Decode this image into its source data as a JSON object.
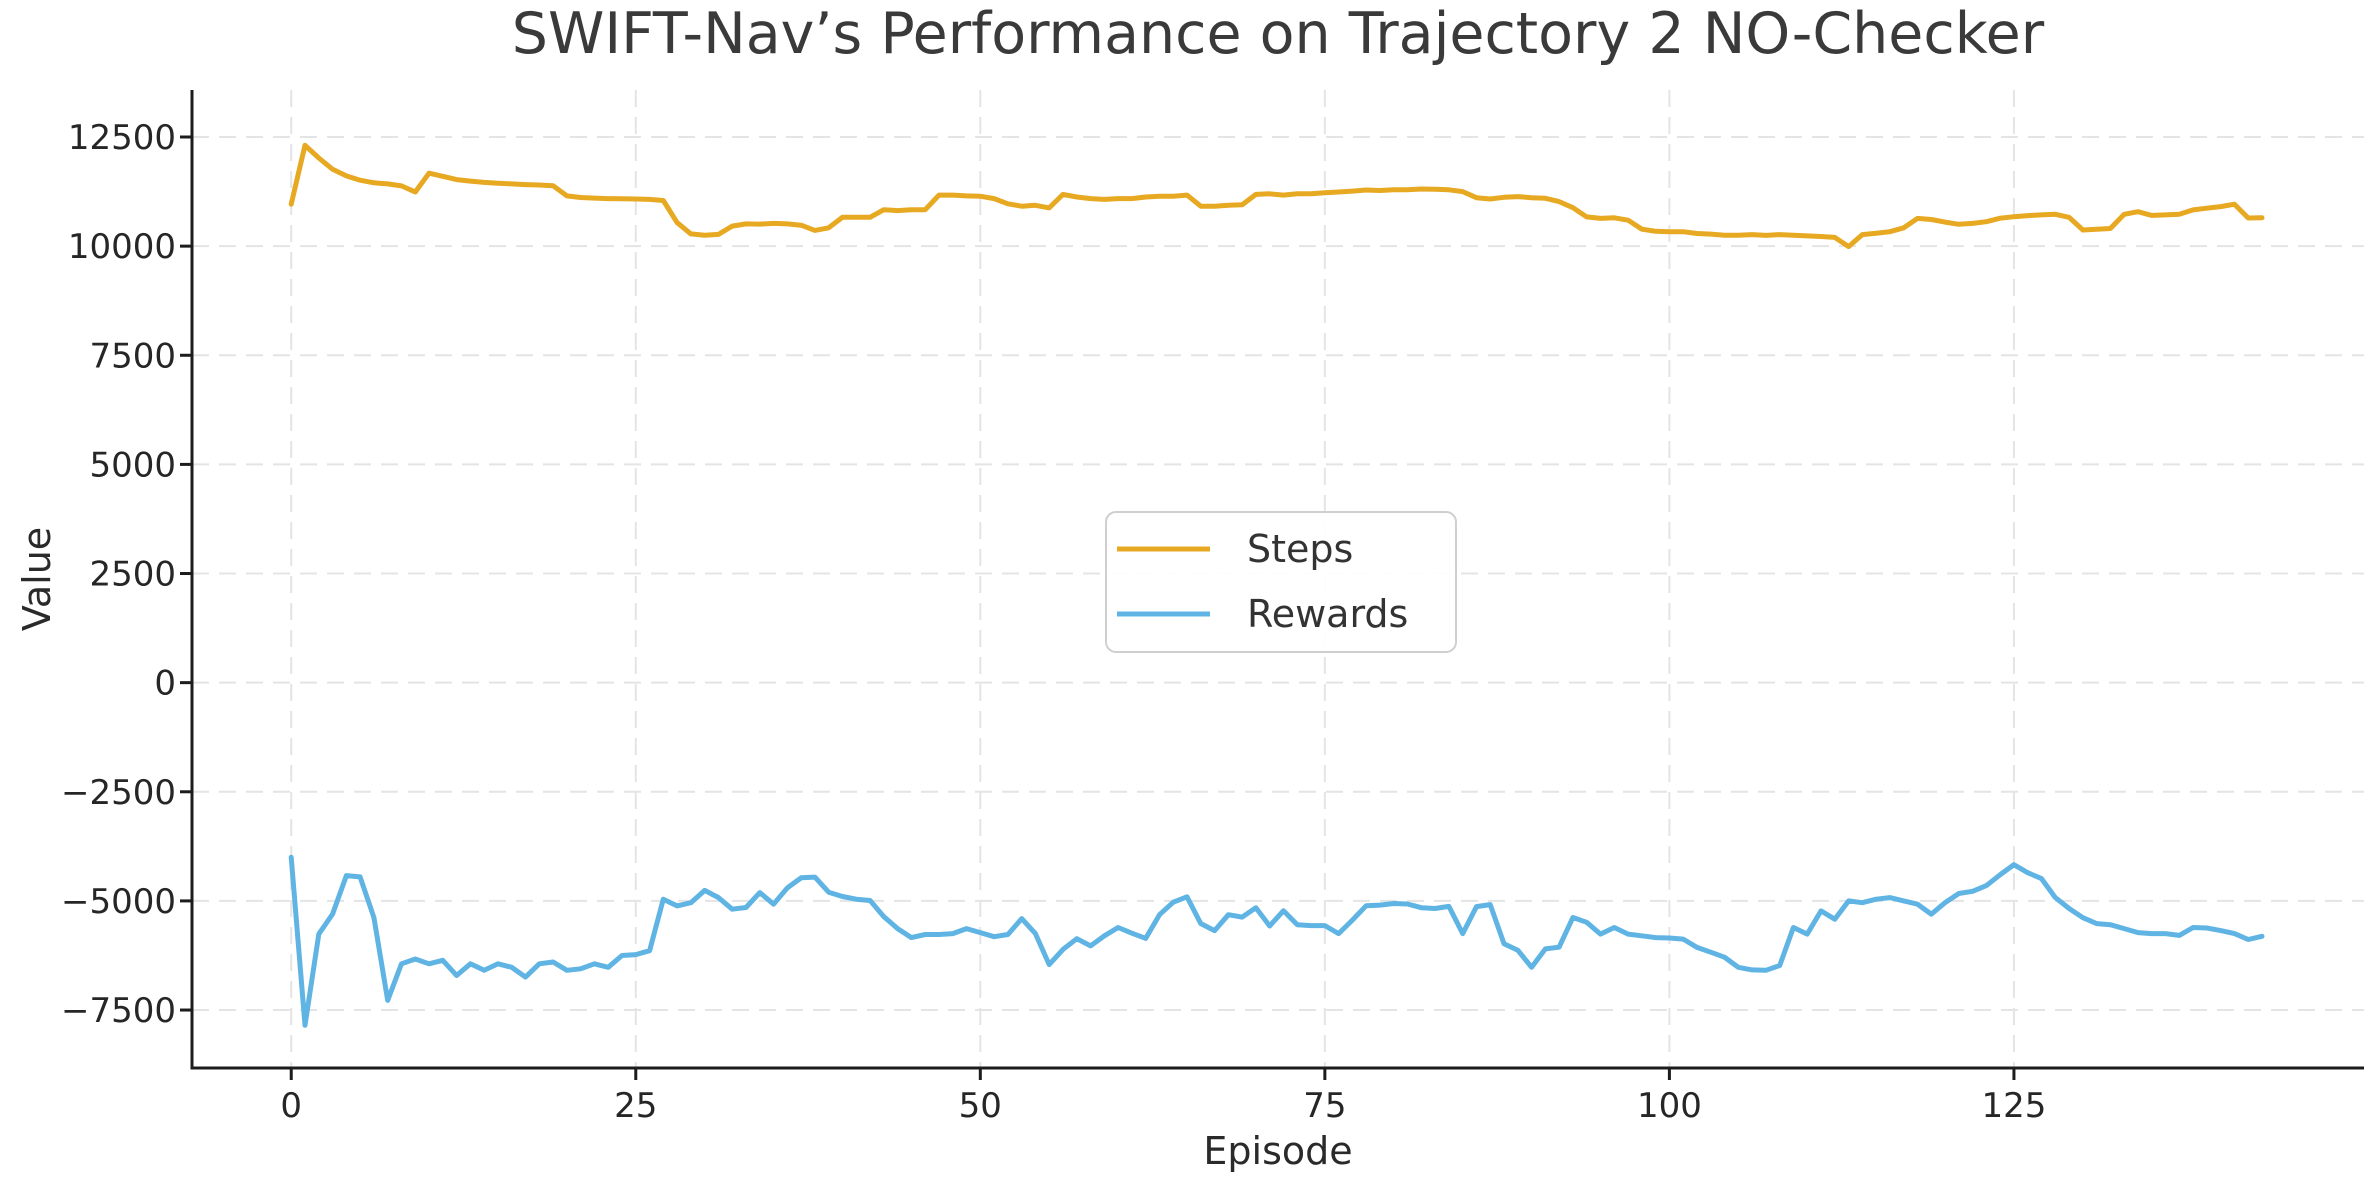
{
  "title": "SWIFT-Nav’s Performance on Trajectory 2 NO-Checker",
  "colors": {
    "steps": "#E7A822",
    "rewards": "#5FB4E4",
    "grid": "#E4E4E4",
    "spine": "#1C1C1C",
    "background": "#FFFFFF"
  },
  "legend": {
    "position": "center",
    "items": [
      {
        "label": "Steps"
      },
      {
        "label": "Rewards"
      }
    ]
  },
  "chart_data": {
    "type": "line",
    "title": "SWIFT-Nav’s Performance on Trajectory 2 NO-Checker",
    "xlabel": "Episode",
    "ylabel": "Value",
    "x_ticks": [
      0,
      25,
      50,
      75,
      100,
      125
    ],
    "y_ticks": [
      12500,
      10000,
      7500,
      5000,
      2500,
      0,
      -2500,
      -5000,
      -7500
    ],
    "xlim": [
      -7.2,
      150.4
    ],
    "ylim": [
      -8828,
      13577
    ],
    "grid": "dashed",
    "legend_position": "center",
    "x": {
      "start": 0,
      "step": 1,
      "count": 144
    },
    "series": [
      {
        "name": "Steps",
        "color": "#E7A822",
        "values": [
          10960,
          12310,
          12020,
          11760,
          11610,
          11510,
          11450,
          11425,
          11380,
          11240,
          11670,
          11600,
          11525,
          11490,
          11460,
          11440,
          11425,
          11410,
          11400,
          11385,
          11150,
          11115,
          11100,
          11090,
          11085,
          11080,
          11070,
          11045,
          10540,
          10280,
          10250,
          10270,
          10460,
          10510,
          10505,
          10520,
          10510,
          10480,
          10360,
          10420,
          10660,
          10660,
          10660,
          10835,
          10815,
          10835,
          10835,
          11170,
          11170,
          11150,
          11145,
          11090,
          10970,
          10915,
          10935,
          10875,
          11185,
          11125,
          11090,
          11070,
          11090,
          11090,
          11125,
          11145,
          11145,
          11170,
          10915,
          10915,
          10935,
          10950,
          11185,
          11200,
          11170,
          11200,
          11200,
          11225,
          11240,
          11260,
          11285,
          11275,
          11290,
          11290,
          11310,
          11305,
          11290,
          11250,
          11110,
          11080,
          11120,
          11135,
          11110,
          11095,
          11020,
          10880,
          10670,
          10635,
          10650,
          10595,
          10390,
          10340,
          10330,
          10330,
          10290,
          10275,
          10250,
          10250,
          10265,
          10245,
          10265,
          10250,
          10235,
          10220,
          10200,
          9990,
          10265,
          10295,
          10330,
          10420,
          10635,
          10610,
          10550,
          10500,
          10520,
          10560,
          10640,
          10675,
          10700,
          10715,
          10730,
          10660,
          10370,
          10385,
          10405,
          10730,
          10790,
          10705,
          10715,
          10730,
          10830,
          10870,
          10905,
          10960,
          10645,
          10650
        ]
      },
      {
        "name": "Rewards",
        "color": "#5FB4E4",
        "values": [
          -4000,
          -7850,
          -5760,
          -5300,
          -4420,
          -4450,
          -5380,
          -7280,
          -6440,
          -6330,
          -6440,
          -6360,
          -6710,
          -6440,
          -6590,
          -6440,
          -6520,
          -6745,
          -6440,
          -6400,
          -6590,
          -6555,
          -6440,
          -6520,
          -6250,
          -6230,
          -6140,
          -4960,
          -5115,
          -5040,
          -4760,
          -4925,
          -5190,
          -5150,
          -4810,
          -5075,
          -4700,
          -4470,
          -4455,
          -4800,
          -4900,
          -4960,
          -4990,
          -5360,
          -5635,
          -5840,
          -5770,
          -5770,
          -5750,
          -5635,
          -5725,
          -5820,
          -5770,
          -5405,
          -5750,
          -6460,
          -6110,
          -5865,
          -6030,
          -5800,
          -5610,
          -5740,
          -5860,
          -5315,
          -5030,
          -4905,
          -5520,
          -5680,
          -5315,
          -5370,
          -5155,
          -5575,
          -5225,
          -5545,
          -5565,
          -5565,
          -5750,
          -5440,
          -5110,
          -5095,
          -5060,
          -5070,
          -5155,
          -5175,
          -5125,
          -5750,
          -5130,
          -5085,
          -5980,
          -6130,
          -6520,
          -6100,
          -6060,
          -5380,
          -5490,
          -5760,
          -5610,
          -5760,
          -5800,
          -5840,
          -5850,
          -5875,
          -6065,
          -6175,
          -6290,
          -6520,
          -6580,
          -6590,
          -6480,
          -5610,
          -5760,
          -5230,
          -5420,
          -5000,
          -5040,
          -4960,
          -4925,
          -5000,
          -5075,
          -5305,
          -5040,
          -4830,
          -4780,
          -4650,
          -4400,
          -4170,
          -4355,
          -4490,
          -4925,
          -5175,
          -5385,
          -5520,
          -5545,
          -5635,
          -5725,
          -5750,
          -5750,
          -5790,
          -5610,
          -5620,
          -5680,
          -5750,
          -5885,
          -5810
        ]
      }
    ]
  }
}
